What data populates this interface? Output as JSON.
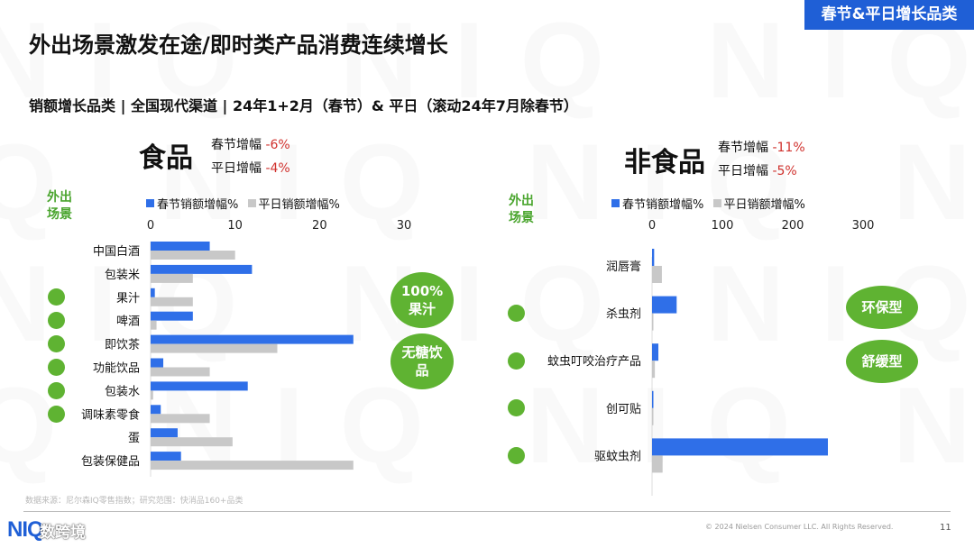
{
  "tag": "春节&平日增长品类",
  "title": "外出场景激发在途/即时类产品消费连续增长",
  "subtitle": "销额增长品类 | 全国现代渠道 | 24年1+2月（春节）& 平日（滚动24年7月除春节）",
  "food": {
    "heading": "食品",
    "spring_label": "春节增幅",
    "spring_value": "-6%",
    "normal_label": "平日增幅",
    "normal_value": "-4%"
  },
  "nonfood": {
    "heading": "非食品",
    "spring_label": "春节增幅",
    "spring_value": "-11%",
    "normal_label": "平日增幅",
    "normal_value": "-5%"
  },
  "scene_label_line1": "外出",
  "scene_label_line2": "场景",
  "legend": {
    "spring": "春节销额增幅%",
    "normal": "平日销额增幅%"
  },
  "colors": {
    "spring": "#2f6fe8",
    "normal": "#c8c8c8",
    "green": "#5fb332",
    "negative": "#d0312d",
    "brand": "#1f5fd6"
  },
  "badges": {
    "food_1": "100%果汁",
    "food_2": "无糖饮品",
    "nonfood_1": "环保型",
    "nonfood_2": "舒缓型"
  },
  "source": "数据来源：尼尔森IQ零售指数；研究范围：快消品160+品类",
  "copyright": "© 2024 Nielsen Consumer LLC. All Rights Reserved.",
  "page_number": "11",
  "logo_text": "NIQ",
  "logo_overlay": "数跨境",
  "chart_data": [
    {
      "type": "bar",
      "orientation": "horizontal",
      "categories": [
        "中国白酒",
        "包装米",
        "果汁",
        "啤酒",
        "即饮茶",
        "功能饮品",
        "包装水",
        "调味素零食",
        "蛋",
        "包装保健品"
      ],
      "series": [
        {
          "name": "春节销额增幅%",
          "values": [
            7,
            12,
            0.5,
            5,
            24,
            1.5,
            11.5,
            1.2,
            3.2,
            3.6
          ]
        },
        {
          "name": "平日销额增幅%",
          "values": [
            10,
            5,
            5,
            0.7,
            15,
            7,
            0.3,
            7,
            9.7,
            24
          ]
        }
      ],
      "out_of_home": [
        false,
        false,
        true,
        true,
        true,
        true,
        true,
        true,
        false,
        false
      ],
      "xlim": [
        0,
        30
      ],
      "xticks": [
        0,
        10,
        20,
        30
      ]
    },
    {
      "type": "bar",
      "orientation": "horizontal",
      "categories": [
        "润唇膏",
        "杀虫剂",
        "蚊虫叮咬治疗产品",
        "创可贴",
        "驱蚊虫剂"
      ],
      "series": [
        {
          "name": "春节销额增幅%",
          "values": [
            3,
            35,
            9,
            1,
            250
          ]
        },
        {
          "name": "平日销额增幅%",
          "values": [
            14,
            1,
            4,
            1,
            15
          ]
        }
      ],
      "out_of_home": [
        false,
        true,
        true,
        true,
        true
      ],
      "xlim": [
        0,
        300
      ],
      "xticks": [
        0,
        100,
        200,
        300
      ]
    }
  ]
}
